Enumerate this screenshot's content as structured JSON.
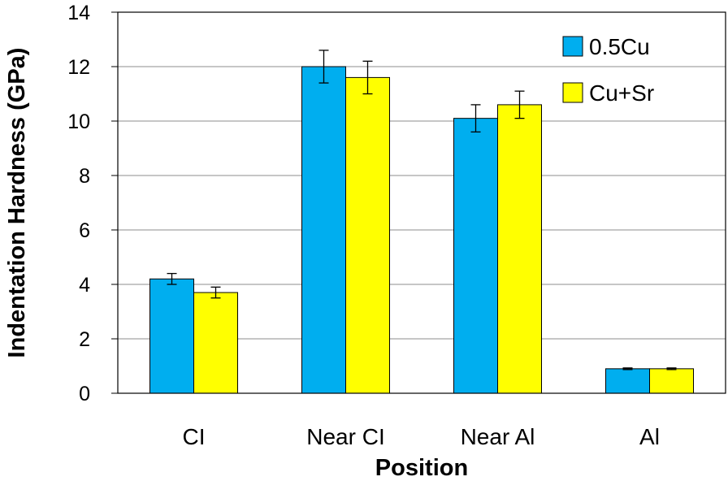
{
  "chart_data": {
    "type": "bar",
    "categories": [
      "CI",
      "Near CI",
      "Near Al",
      "Al"
    ],
    "series": [
      {
        "name": "0.5Cu",
        "color": "#00AEEF",
        "values": [
          4.2,
          12.0,
          10.1,
          0.9
        ],
        "errors": [
          0.2,
          0.6,
          0.5,
          0.03
        ]
      },
      {
        "name": "Cu+Sr",
        "color": "#FFFF00",
        "values": [
          3.7,
          11.6,
          10.6,
          0.9
        ],
        "errors": [
          0.2,
          0.6,
          0.5,
          0.03
        ]
      }
    ],
    "xlabel": "Position",
    "ylabel": "Indentation Hardness (GPa)",
    "ylim": [
      0,
      14
    ],
    "yticks": [
      "0",
      "2",
      "4",
      "6",
      "8",
      "10",
      "12",
      "14"
    ],
    "grid": true,
    "legend_position": "top-right"
  }
}
